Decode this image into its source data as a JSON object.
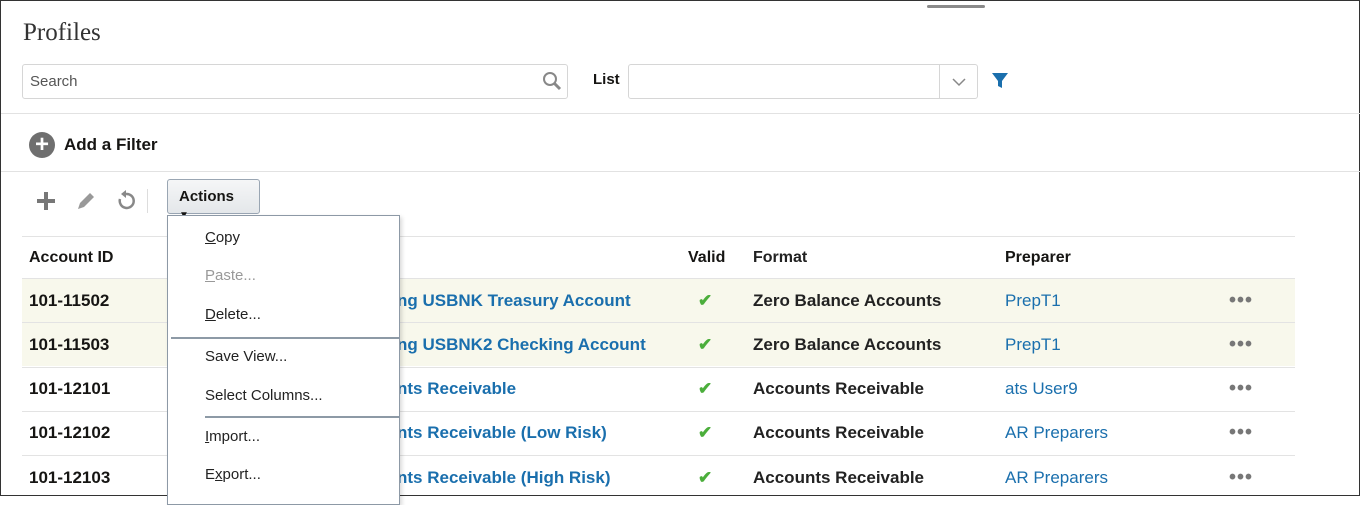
{
  "page": {
    "title": "Profiles"
  },
  "search": {
    "placeholder": "Search"
  },
  "list": {
    "label": "List",
    "value": ""
  },
  "filter": {
    "add_label": "Add a Filter"
  },
  "toolbar": {
    "actions_label": "Actions"
  },
  "menu": {
    "items": [
      {
        "label": "Copy",
        "enabled": true
      },
      {
        "label": "Paste...",
        "enabled": false
      },
      {
        "label": "Delete...",
        "enabled": true
      },
      {
        "label": "Save View...",
        "enabled": true
      },
      {
        "label": "Select Columns...",
        "enabled": true
      },
      {
        "label": "Import...",
        "enabled": true
      },
      {
        "label": "Export...",
        "enabled": true
      }
    ]
  },
  "table": {
    "columns": {
      "id": "Account ID",
      "name": "",
      "valid": "Valid",
      "format": "Format",
      "preparer": "Preparer"
    },
    "rows": [
      {
        "id": "101-11502",
        "name": "ng USBNK Treasury Account",
        "format": "Zero Balance Accounts",
        "preparer": "PrepT1",
        "highlight": true
      },
      {
        "id": "101-11503",
        "name": "ng USBNK2 Checking Account",
        "format": "Zero Balance Accounts",
        "preparer": "PrepT1",
        "highlight": true
      },
      {
        "id": "101-12101",
        "name": "nts Receivable",
        "format": "Accounts Receivable",
        "preparer": "ats User9",
        "highlight": false
      },
      {
        "id": "101-12102",
        "name": "nts Receivable (Low Risk)",
        "format": "Accounts Receivable",
        "preparer": "AR Preparers",
        "highlight": false
      },
      {
        "id": "101-12103",
        "name": "nts Receivable (High Risk)",
        "format": "Accounts Receivable",
        "preparer": "AR Preparers",
        "highlight": false
      }
    ],
    "more_glyph": "•••",
    "valid_glyph": "✔"
  },
  "colors": {
    "link": "#1a6fad",
    "valid": "#4bae3b",
    "highlight_row": "#f8f8ec"
  }
}
